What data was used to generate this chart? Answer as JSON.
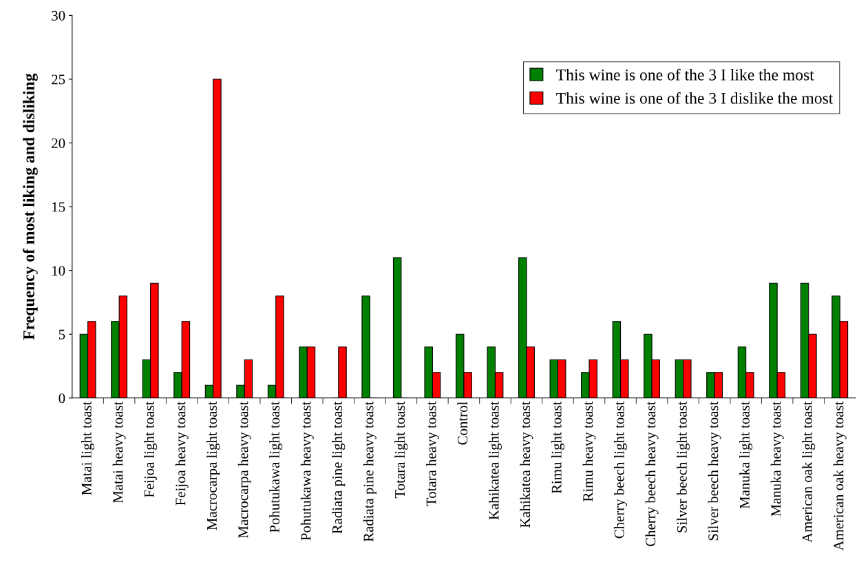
{
  "chart_data": {
    "type": "bar",
    "ylabel": "Frequency of most liking and disliking",
    "categories": [
      "Matai light toast",
      "Matai heavy toast",
      "Feijoa light toast",
      "Feijoa heavy toast",
      "Macrocarpa light toast",
      "Macrocarpa heavy toast",
      "Pohutukawa light toast",
      "Pohutukawa heavy toast",
      "Radiata pine light toast",
      "Radiata pine heavy toast",
      "Totara light toast",
      "Totara heavy toast",
      "Control",
      "Kahikatea light toast",
      "Kahikatea heavy toast",
      "Rimu light toast",
      "Rimu heavy toast",
      "Cherry beech light toast",
      "Cherry beech heavy toast",
      "Silver beech light toast",
      "Silver beech heavy toast",
      "Manuka light toast",
      "Manuka heavy toast",
      "American oak light toast",
      "American oak heavy toast"
    ],
    "series": [
      {
        "name": "This wine is one of the 3 I like the most",
        "color": "#008000",
        "values": [
          5,
          6,
          3,
          2,
          1,
          1,
          1,
          4,
          0,
          8,
          11,
          4,
          5,
          4,
          11,
          3,
          2,
          6,
          5,
          3,
          2,
          4,
          9,
          9,
          8
        ]
      },
      {
        "name": "This wine is one of the 3 I dislike the most",
        "color": "#ff0000",
        "values": [
          6,
          8,
          9,
          6,
          25,
          3,
          8,
          4,
          4,
          0,
          0,
          2,
          2,
          2,
          4,
          3,
          3,
          3,
          3,
          3,
          2,
          2,
          2,
          5,
          6
        ]
      }
    ],
    "ylim": [
      0,
      30
    ],
    "yticks": [
      0,
      5,
      10,
      15,
      20,
      25,
      30
    ],
    "grid": false,
    "legend": "top right"
  }
}
